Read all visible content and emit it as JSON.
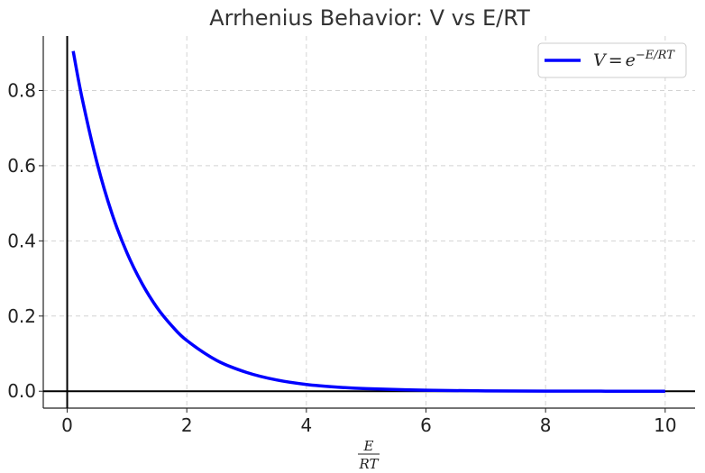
{
  "chart_data": {
    "type": "line",
    "title": "Arrhenius Behavior: V vs E/RT",
    "xlabel": {
      "numerator": "E",
      "denominator": "RT"
    },
    "ylabel": "",
    "xlim": [
      -0.4,
      10.5
    ],
    "ylim": [
      -0.045,
      0.945
    ],
    "x_ticks": [
      "0",
      "2",
      "4",
      "6",
      "8",
      "10"
    ],
    "y_ticks": [
      "0.0",
      "0.2",
      "0.4",
      "0.6",
      "0.8"
    ],
    "grid": true,
    "legend_placement": "top-right",
    "series": [
      {
        "name": {
          "lhs": "V",
          "eq": "=",
          "base": "e",
          "exponent": "−E/RT"
        },
        "color": "#0000ff",
        "x": [
          0.1,
          0.25,
          0.5,
          0.75,
          1.0,
          1.25,
          1.5,
          1.75,
          2.0,
          2.5,
          3.0,
          3.5,
          4.0,
          4.5,
          5.0,
          6.0,
          7.0,
          8.0,
          9.0,
          10.0
        ],
        "y": [
          0.905,
          0.779,
          0.607,
          0.472,
          0.368,
          0.287,
          0.223,
          0.174,
          0.135,
          0.082,
          0.05,
          0.03,
          0.018,
          0.011,
          0.0067,
          0.0025,
          0.0009,
          0.0003,
          0.0001,
          5e-05
        ]
      }
    ]
  }
}
